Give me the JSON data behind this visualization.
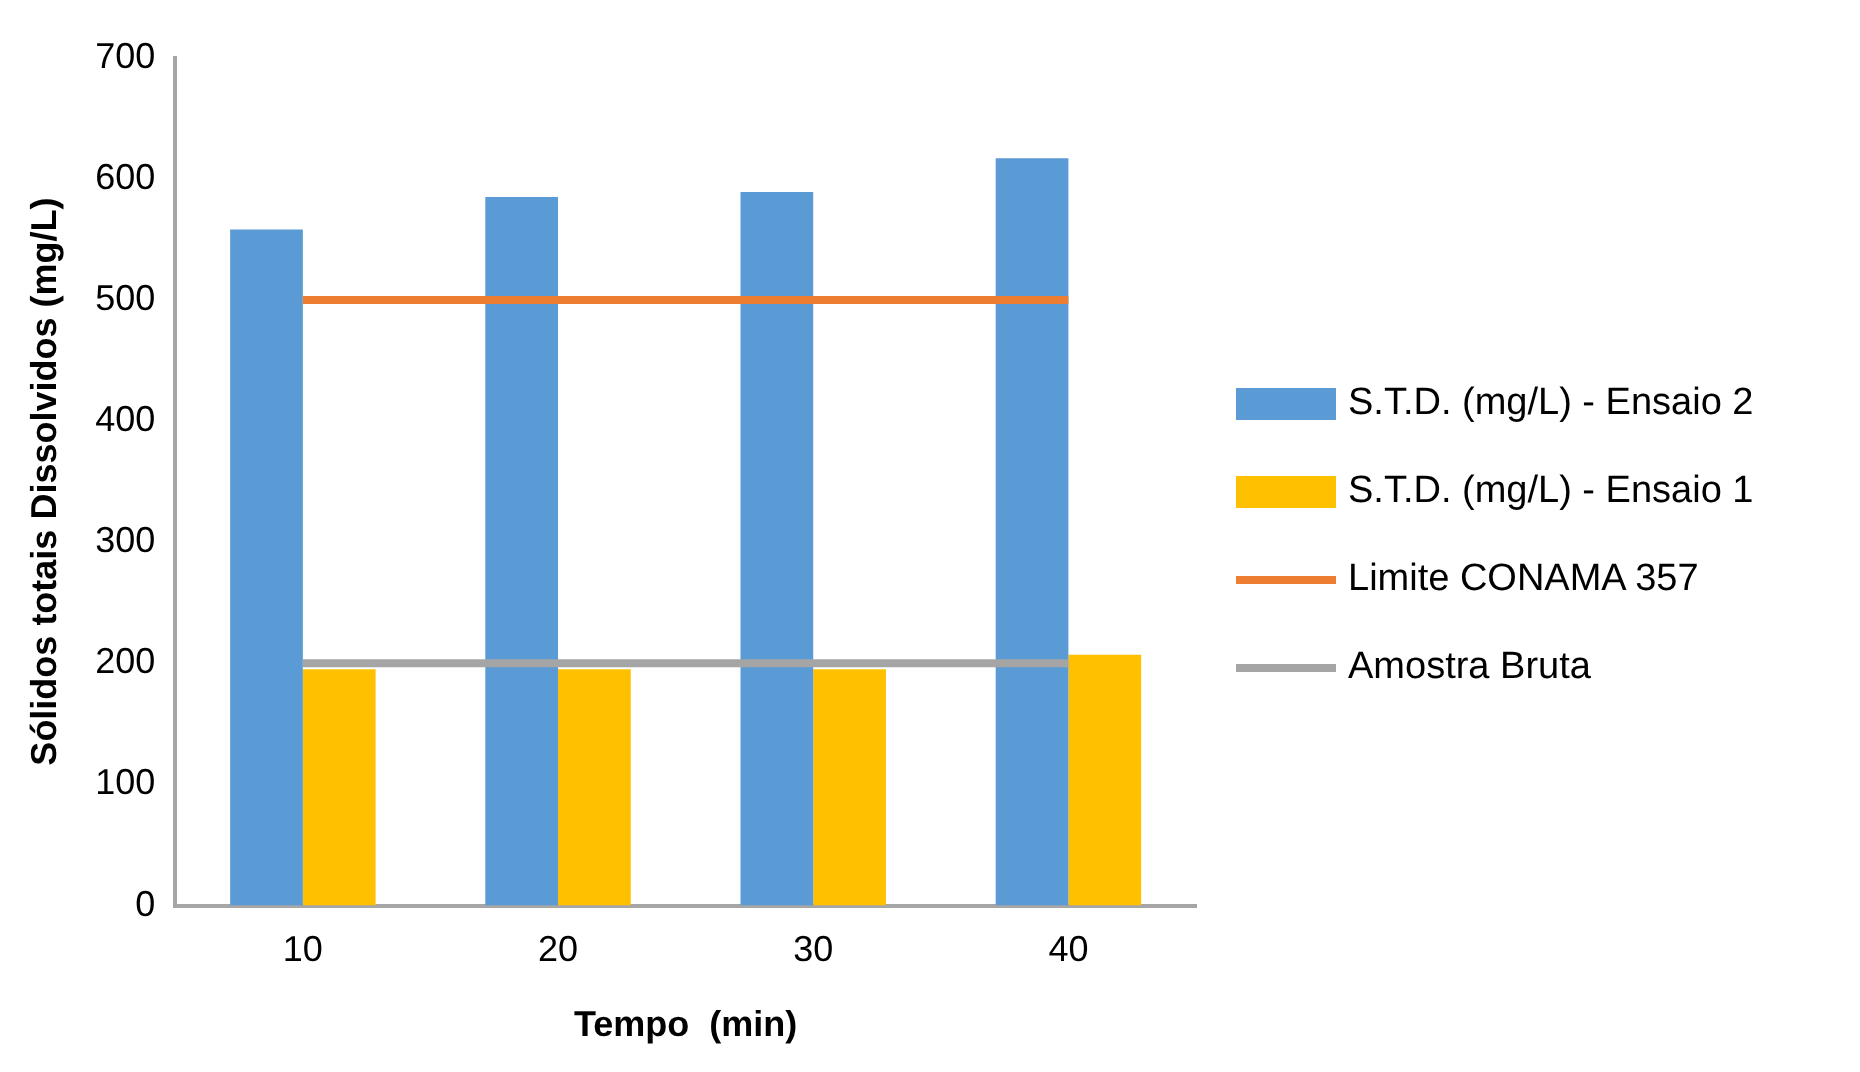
{
  "chart_data": {
    "type": "bar",
    "xlabel": "Tempo  (min)",
    "ylabel": "Sólidos totais Dissolvidos (mg/L)",
    "categories": [
      "10",
      "20",
      "30",
      "40"
    ],
    "series": [
      {
        "name": "S.T.D. (mg/L) - Ensaio 2",
        "color": "#5b9bd5",
        "values": [
          558,
          585,
          589,
          617
        ]
      },
      {
        "name": "S.T.D. (mg/L) - Ensaio 1",
        "color": "#ffc000",
        "values": [
          195,
          195,
          195,
          207
        ]
      },
      {
        "name": "Limite CONAMA 357",
        "type": "line",
        "color": "#ed7d31",
        "values": [
          500,
          500,
          500,
          500
        ]
      },
      {
        "name": "Amostra Bruta",
        "type": "line",
        "color": "#a5a5a5",
        "values": [
          200,
          200,
          200,
          200
        ]
      }
    ],
    "ylim": [
      0,
      700
    ],
    "yticks": [
      0,
      100,
      200,
      300,
      400,
      500,
      600,
      700
    ],
    "grid": false,
    "legend": "right",
    "marker": "none"
  }
}
